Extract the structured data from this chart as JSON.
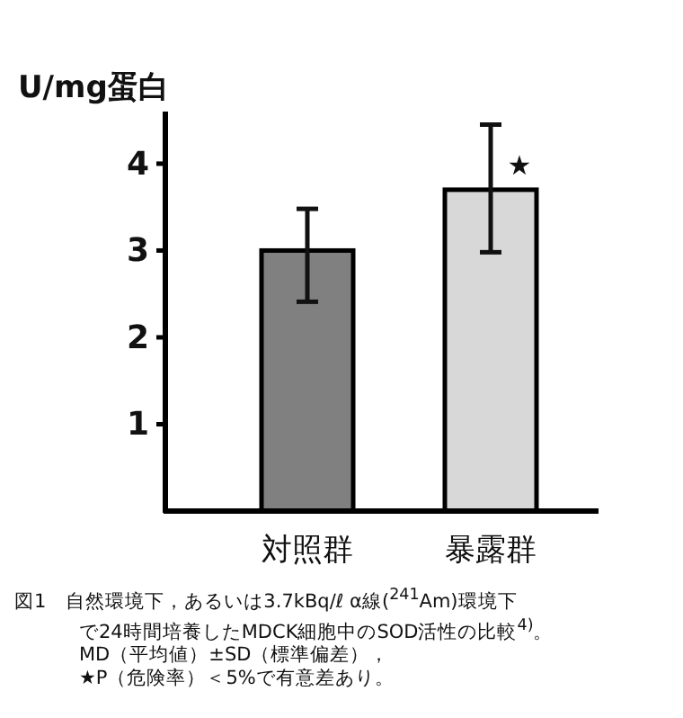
{
  "chart_data": {
    "type": "bar",
    "ylabel": "U/mg蛋白",
    "categories": [
      "対照群",
      "暴露群"
    ],
    "values": [
      3.0,
      3.7
    ],
    "colors": [
      "#808080",
      "#d8d8d8"
    ],
    "errors": [
      [
        2.41,
        3.48
      ],
      [
        2.98,
        4.45
      ]
    ],
    "ylim": [
      0,
      4.6
    ],
    "yticks": [
      1,
      2,
      3,
      4
    ],
    "annotations": [
      {
        "text": "★",
        "x": "暴露群",
        "y": 4.0
      },
      "図1　自然環境下，あるいは3.7kBq/ℓ α線($^{241}$Am)環境下",
      "で24時間培養したMDCK細胞中のSOD活性の比較$^{4)}$。",
      "MD（平均値）±SD（標準偏差），",
      "★P（危険率）＜5%で有意差あり。"
    ]
  }
}
